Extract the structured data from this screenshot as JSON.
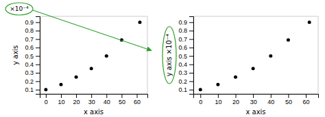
{
  "chart_data": [
    {
      "type": "scatter",
      "x": [
        0,
        10,
        20,
        30,
        40,
        50,
        62
      ],
      "values": [
        0.1,
        0.16,
        0.25,
        0.35,
        0.5,
        0.69,
        0.9
      ],
      "color": "black",
      "xlabel": "x axis",
      "ylabel": "y axis",
      "xlim": [
        -4,
        67
      ],
      "ylim": [
        0.05,
        0.97
      ],
      "xticks": [
        0,
        10,
        20,
        30,
        40,
        50,
        60
      ],
      "yticks": [
        0.1,
        0.2,
        0.3,
        0.4,
        0.5,
        0.6,
        0.7,
        0.8,
        0.9
      ],
      "annotations": [
        "×10⁻⁴"
      ]
    },
    {
      "type": "scatter",
      "x": [
        0,
        10,
        20,
        30,
        40,
        50,
        62
      ],
      "values": [
        0.1,
        0.16,
        0.25,
        0.35,
        0.5,
        0.69,
        0.9
      ],
      "color": "black",
      "xlabel": "x axis",
      "ylabel": "y axis ×10⁻⁴",
      "xlim": [
        -4,
        67
      ],
      "ylim": [
        0.05,
        0.97
      ],
      "xticks": [
        0,
        10,
        20,
        30,
        40,
        50,
        60
      ],
      "yticks": [
        0.1,
        0.2,
        0.3,
        0.4,
        0.5,
        0.6,
        0.7,
        0.8,
        0.9
      ]
    }
  ]
}
